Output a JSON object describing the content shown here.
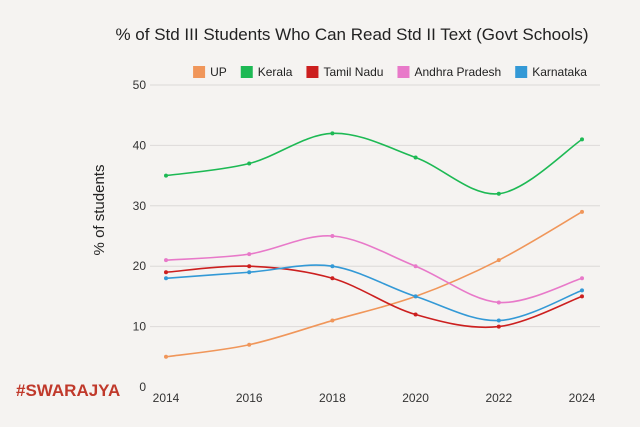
{
  "chart_data": {
    "type": "line",
    "title": "% of Std III Students Who Can Read Std II Text (Govt Schools)",
    "xlabel": "",
    "ylabel": "% of students",
    "x": [
      2014,
      2016,
      2018,
      2020,
      2022,
      2024
    ],
    "ylim": [
      0,
      50
    ],
    "yticks": [
      0,
      10,
      20,
      30,
      40,
      50
    ],
    "grid": "horizontal",
    "legend": "top",
    "smooth": true,
    "series": [
      {
        "name": "UP",
        "color": "#f0965a",
        "values": [
          5,
          7,
          11,
          15,
          21,
          29
        ]
      },
      {
        "name": "Kerala",
        "color": "#1db954",
        "values": [
          35,
          37,
          42,
          38,
          32,
          41
        ]
      },
      {
        "name": "Tamil Nadu",
        "color": "#cc1f1f",
        "values": [
          19,
          20,
          18,
          12,
          10,
          15
        ]
      },
      {
        "name": "Andhra Pradesh",
        "color": "#e879c9",
        "values": [
          21,
          22,
          25,
          20,
          14,
          18
        ]
      },
      {
        "name": "Karnataka",
        "color": "#3399d6",
        "values": [
          18,
          19,
          20,
          15,
          11,
          16
        ]
      }
    ]
  },
  "logo": "#SWARAJYA"
}
